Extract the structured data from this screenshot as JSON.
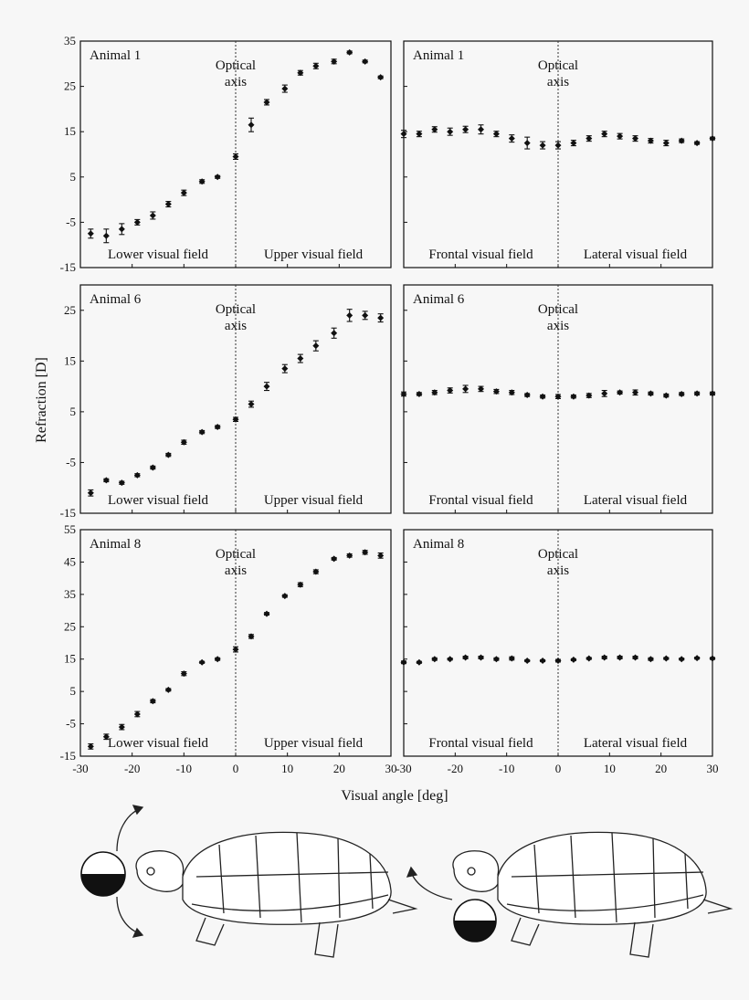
{
  "figure": {
    "x_axis_label": "Visual angle [deg]",
    "y_axis_label": "Refraction [D]",
    "optical_axis_line1": "Optical",
    "optical_axis_line2": "axis"
  },
  "chart_data": [
    {
      "type": "scatter",
      "panel": "top-left",
      "title": "Animal 1",
      "xlim": [
        -30,
        30
      ],
      "ylim": [
        -15,
        35
      ],
      "yticks": [
        -15,
        -5,
        5,
        15,
        25,
        35
      ],
      "field_left": "Lower visual field",
      "field_right": "Upper visual field",
      "x": [
        -28,
        -25,
        -22,
        -19,
        -16,
        -13,
        -10,
        -6.5,
        -3.5,
        0,
        3,
        6,
        9.5,
        12.5,
        15.5,
        19,
        22,
        25,
        28
      ],
      "y": [
        -7.5,
        -8,
        -6.5,
        -5,
        -3.5,
        -1,
        1.5,
        4,
        5,
        9.5,
        16.5,
        21.5,
        24.5,
        28,
        29.5,
        30.5,
        32.5,
        30.5,
        27
      ],
      "err": [
        1,
        1.5,
        1.2,
        0.6,
        0.8,
        0.6,
        0.6,
        0.4,
        0.3,
        0.6,
        1.5,
        0.6,
        0.8,
        0.5,
        0.6,
        0.5,
        0.3,
        0.3,
        0.3
      ]
    },
    {
      "type": "scatter",
      "panel": "top-right",
      "title": "Animal 1",
      "xlim": [
        -30,
        30
      ],
      "ylim": [
        -15,
        35
      ],
      "yticks": [
        -15,
        -5,
        5,
        15,
        25,
        35
      ],
      "field_left": "Frontal visual field",
      "field_right": "Lateral visual field",
      "x": [
        -30,
        -27,
        -24,
        -21,
        -18,
        -15,
        -12,
        -9,
        -6,
        -3,
        0,
        3,
        6,
        9,
        12,
        15,
        18,
        21,
        24,
        27,
        30
      ],
      "y": [
        14.5,
        14.5,
        15.5,
        15,
        15.5,
        15.5,
        14.5,
        13.5,
        12.5,
        12,
        12,
        12.5,
        13.5,
        14.5,
        14,
        13.5,
        13,
        12.5,
        13,
        12.5,
        13.5
      ],
      "err": [
        0.8,
        0.6,
        0.6,
        0.8,
        0.7,
        1,
        0.6,
        0.8,
        1.3,
        0.8,
        0.8,
        0.6,
        0.6,
        0.6,
        0.6,
        0.6,
        0.5,
        0.6,
        0.4,
        0.3,
        0.3
      ]
    },
    {
      "type": "scatter",
      "panel": "middle-left",
      "title": "Animal 6",
      "xlim": [
        -30,
        30
      ],
      "ylim": [
        -15,
        30
      ],
      "yticks": [
        -15,
        -5,
        5,
        15,
        25
      ],
      "field_left": "Lower visual field",
      "field_right": "Upper visual field",
      "x": [
        -28,
        -25,
        -22,
        -19,
        -16,
        -13,
        -10,
        -6.5,
        -3.5,
        0,
        3,
        6,
        9.5,
        12.5,
        15.5,
        19,
        22,
        25,
        28
      ],
      "y": [
        -11,
        -8.5,
        -9,
        -7.5,
        -6,
        -3.5,
        -1,
        1,
        2,
        3.5,
        6.5,
        10,
        13.5,
        15.5,
        18,
        20.5,
        24,
        24,
        23.5
      ],
      "err": [
        0.6,
        0.3,
        0.3,
        0.3,
        0.3,
        0.3,
        0.4,
        0.3,
        0.3,
        0.4,
        0.6,
        0.8,
        0.8,
        0.8,
        1,
        1,
        1.2,
        0.8,
        0.8
      ]
    },
    {
      "type": "scatter",
      "panel": "middle-right",
      "title": "Animal 6",
      "xlim": [
        -30,
        30
      ],
      "ylim": [
        -15,
        30
      ],
      "yticks": [
        -15,
        -5,
        5,
        15,
        25
      ],
      "field_left": "Frontal visual field",
      "field_right": "Lateral visual field",
      "x": [
        -30,
        -27,
        -24,
        -21,
        -18,
        -15,
        -12,
        -9,
        -6,
        -3,
        0,
        3,
        6,
        9,
        12,
        15,
        18,
        21,
        24,
        27,
        30
      ],
      "y": [
        8.5,
        8.5,
        8.8,
        9.2,
        9.5,
        9.5,
        9,
        8.8,
        8.3,
        8,
        8,
        8,
        8.2,
        8.6,
        8.8,
        8.8,
        8.6,
        8.2,
        8.5,
        8.6,
        8.6
      ],
      "err": [
        0.4,
        0.3,
        0.4,
        0.5,
        0.7,
        0.5,
        0.4,
        0.4,
        0.3,
        0.3,
        0.4,
        0.3,
        0.4,
        0.6,
        0.3,
        0.5,
        0.3,
        0.3,
        0.3,
        0.3,
        0.3
      ]
    },
    {
      "type": "scatter",
      "panel": "bottom-left",
      "title": "Animal 8",
      "xlim": [
        -30,
        30
      ],
      "ylim": [
        -15,
        55
      ],
      "yticks": [
        -15,
        -5,
        5,
        15,
        25,
        35,
        45,
        55
      ],
      "field_left": "Lower visual field",
      "field_right": "Upper visual field",
      "x": [
        -28,
        -25,
        -22,
        -19,
        -16,
        -13,
        -10,
        -6.5,
        -3.5,
        0,
        3,
        6,
        9.5,
        12.5,
        15.5,
        19,
        22,
        25,
        28
      ],
      "y": [
        -12,
        -9,
        -6,
        -2,
        2,
        5.5,
        10.5,
        14,
        15,
        18,
        22,
        29,
        34.5,
        38,
        42,
        46,
        47,
        48,
        47
      ],
      "err": [
        0.8,
        0.8,
        0.8,
        0.8,
        0.5,
        0.4,
        0.6,
        0.3,
        0.4,
        0.8,
        0.6,
        0.4,
        0.4,
        0.6,
        0.6,
        0.4,
        0.5,
        0.6,
        0.8
      ]
    },
    {
      "type": "scatter",
      "panel": "bottom-right",
      "title": "Animal 8",
      "xlim": [
        -30,
        30
      ],
      "ylim": [
        -15,
        55
      ],
      "yticks": [
        -15,
        -5,
        5,
        15,
        25,
        35,
        45,
        55
      ],
      "field_left": "Frontal visual field",
      "field_right": "Lateral visual field",
      "x": [
        -30,
        -27,
        -24,
        -21,
        -18,
        -15,
        -12,
        -9,
        -6,
        -3,
        0,
        3,
        6,
        9,
        12,
        15,
        18,
        21,
        24,
        27,
        30
      ],
      "y": [
        14,
        14,
        15,
        15,
        15.5,
        15.5,
        15,
        15.2,
        14.5,
        14.5,
        14.5,
        14.8,
        15.2,
        15.5,
        15.5,
        15.5,
        15,
        15.2,
        15,
        15.3,
        15.2
      ],
      "err": [
        0.4,
        0.3,
        0.4,
        0.3,
        0.4,
        0.4,
        0.4,
        0.5,
        0.3,
        0.3,
        0.4,
        0.3,
        0.3,
        0.4,
        0.4,
        0.4,
        0.4,
        0.3,
        0.3,
        0.3,
        0.3
      ]
    }
  ],
  "xticks": [
    -30,
    -20,
    -10,
    0,
    10,
    20,
    30
  ]
}
